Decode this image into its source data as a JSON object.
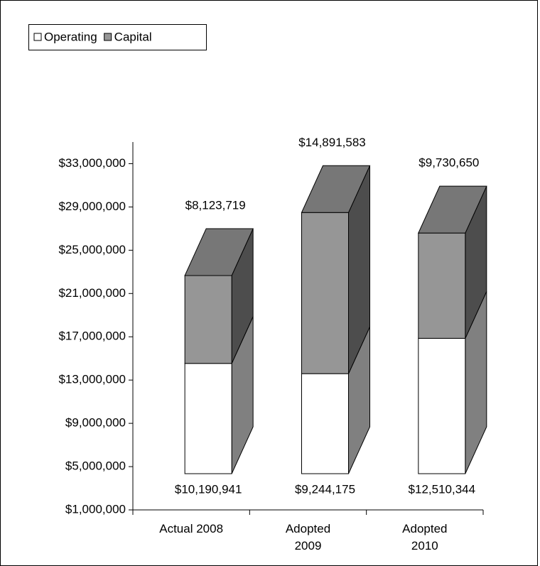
{
  "chart_data": {
    "type": "bar3d_stacked",
    "categories": [
      "Actual 2008",
      "Adopted 2009",
      "Adopted 2010"
    ],
    "series": [
      {
        "name": "Operating",
        "color": "#ffffff",
        "values": [
          10190941,
          9244175,
          12510344
        ],
        "value_labels": [
          "$10,190,941",
          "$9,244,175",
          "$12,510,344"
        ]
      },
      {
        "name": "Capital",
        "color": "#969696",
        "values": [
          8123719,
          14891583,
          9730650
        ],
        "value_labels": [
          "$8,123,719",
          "$14,891,583",
          "$9,730,650"
        ]
      }
    ],
    "ylim": [
      1000000,
      35000000
    ],
    "yticks": [
      {
        "value": 1000000,
        "label": "$1,000,000"
      },
      {
        "value": 5000000,
        "label": "$5,000,000"
      },
      {
        "value": 9000000,
        "label": "$9,000,000"
      },
      {
        "value": 13000000,
        "label": "$13,000,000"
      },
      {
        "value": 17000000,
        "label": "$17,000,000"
      },
      {
        "value": 21000000,
        "label": "$21,000,000"
      },
      {
        "value": 25000000,
        "label": "$25,000,000"
      },
      {
        "value": 29000000,
        "label": "$29,000,000"
      },
      {
        "value": 33000000,
        "label": "$33,000,000"
      }
    ],
    "legend": "top-left"
  }
}
